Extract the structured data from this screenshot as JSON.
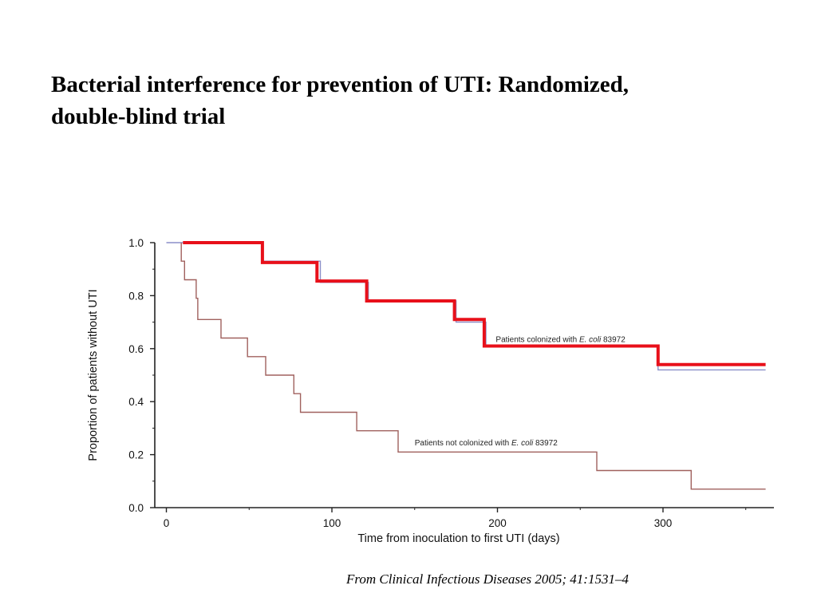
{
  "slide": {
    "title_line1": "Bacterial interference for prevention of UTI: Randomized,",
    "title_line2": "double-blind trial",
    "citation": "From Clinical Infectious Diseases 2005; 41:1531–4"
  },
  "chart_data": {
    "type": "line",
    "step": true,
    "xlabel": "Time from inoculation to first UTI (days)",
    "ylabel": "Proportion of patients without UTI",
    "xlim": [
      -7,
      367
    ],
    "ylim": [
      0,
      1.0
    ],
    "x_ticks": [
      0,
      100,
      200,
      300
    ],
    "y_ticks": [
      0.0,
      0.2,
      0.4,
      0.6,
      0.8,
      1.0
    ],
    "y_tick_labels": [
      "0.0",
      "0.2",
      "0.4",
      "0.6",
      "0.8",
      "1.0"
    ],
    "grid": false,
    "series": [
      {
        "key": "colonized",
        "color": "#8a8ec8",
        "highlight_color": "#e8101a",
        "points": [
          [
            10,
            1.0
          ],
          [
            58,
            1.0
          ],
          [
            58,
            0.93
          ],
          [
            93,
            0.93
          ],
          [
            93,
            0.85
          ],
          [
            122,
            0.85
          ],
          [
            122,
            0.78
          ],
          [
            175,
            0.78
          ],
          [
            175,
            0.7
          ],
          [
            193,
            0.7
          ],
          [
            193,
            0.61
          ],
          [
            297,
            0.61
          ],
          [
            297,
            0.52
          ],
          [
            362,
            0.52
          ]
        ],
        "highlight_points": [
          [
            10,
            1.0
          ],
          [
            58,
            1.0
          ],
          [
            58,
            0.925
          ],
          [
            91,
            0.925
          ],
          [
            91,
            0.855
          ],
          [
            121,
            0.855
          ],
          [
            121,
            0.78
          ],
          [
            174,
            0.78
          ],
          [
            174,
            0.71
          ],
          [
            192,
            0.71
          ],
          [
            192,
            0.61
          ],
          [
            297,
            0.61
          ],
          [
            297,
            0.54
          ],
          [
            362,
            0.54
          ]
        ]
      },
      {
        "key": "not_colonized",
        "color": "#a0615e",
        "points": [
          [
            9,
            1.0
          ],
          [
            9,
            0.93
          ],
          [
            11,
            0.93
          ],
          [
            11,
            0.86
          ],
          [
            18,
            0.86
          ],
          [
            18,
            0.79
          ],
          [
            19,
            0.79
          ],
          [
            19,
            0.71
          ],
          [
            33,
            0.71
          ],
          [
            33,
            0.64
          ],
          [
            49,
            0.64
          ],
          [
            49,
            0.57
          ],
          [
            60,
            0.57
          ],
          [
            60,
            0.5
          ],
          [
            77,
            0.5
          ],
          [
            77,
            0.43
          ],
          [
            81,
            0.43
          ],
          [
            81,
            0.36
          ],
          [
            115,
            0.36
          ],
          [
            115,
            0.29
          ],
          [
            140,
            0.29
          ],
          [
            140,
            0.21
          ],
          [
            260,
            0.21
          ],
          [
            260,
            0.14
          ],
          [
            317,
            0.14
          ],
          [
            317,
            0.07
          ],
          [
            362,
            0.07
          ]
        ]
      }
    ],
    "annotations": [
      {
        "key": "colonized",
        "text_before": "Patients colonized with ",
        "text_italic": "E. coli",
        "text_after": " 83972",
        "x": 199,
        "y": 0.625
      },
      {
        "key": "not_colonized",
        "text_before": "Patients not colonized with ",
        "text_italic": "E. coli",
        "text_after": " 83972",
        "x": 150,
        "y": 0.235
      }
    ]
  }
}
